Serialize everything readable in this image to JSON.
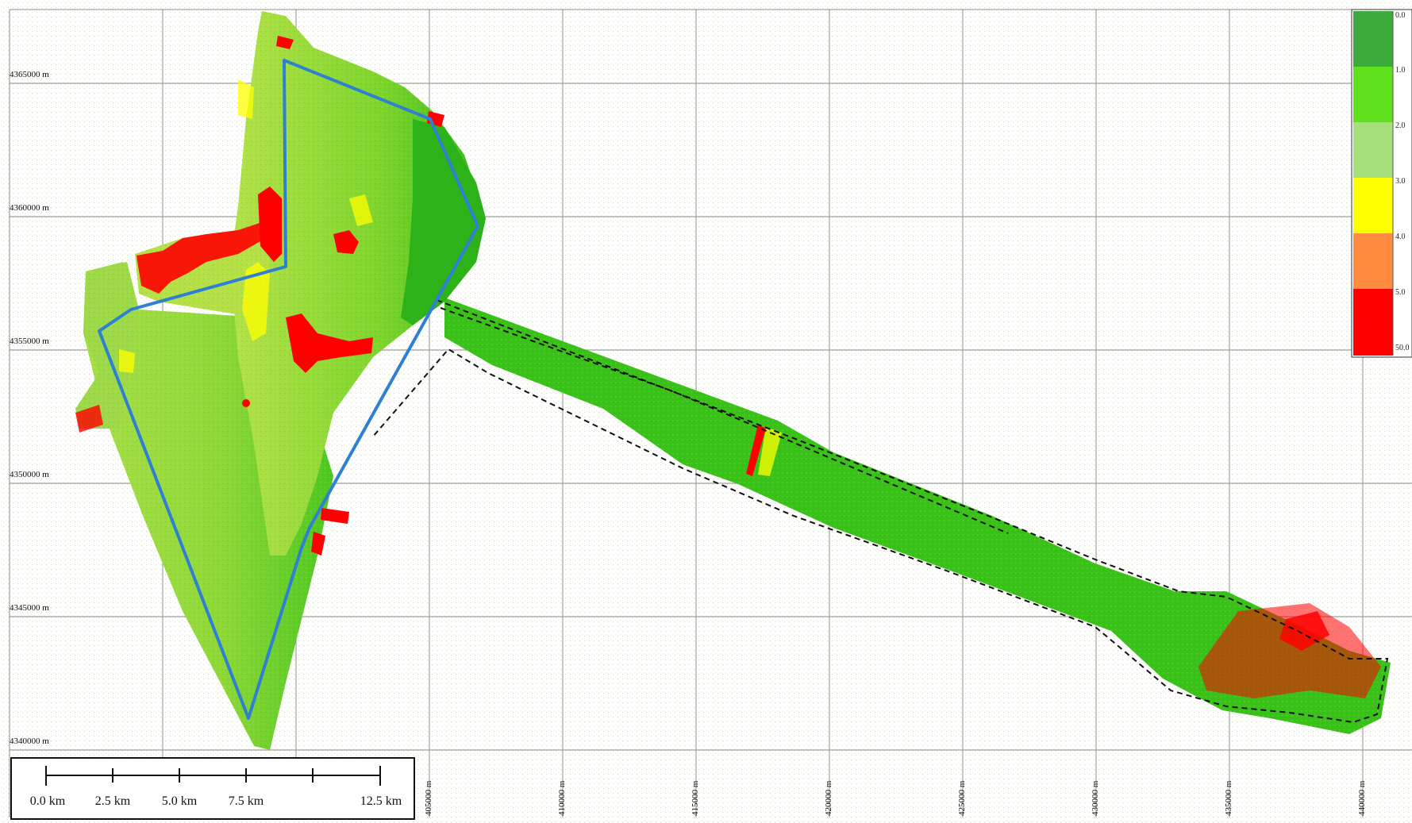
{
  "map": {
    "y_ticks": [
      "4365000 m",
      "4360000 m",
      "4355000 m",
      "4350000 m",
      "4345000 m",
      "4340000 m"
    ],
    "x_ticks": [
      "405000 m",
      "410000 m",
      "415000 m",
      "420000 m",
      "425000 m",
      "430000 m",
      "435000 m",
      "440000 m"
    ],
    "legend": {
      "labels": [
        "0.0",
        "1.0",
        "2.0",
        "3.0",
        "4.0",
        "5.0",
        "50.0"
      ],
      "colors": [
        "#3bab3b",
        "#5fe01c",
        "#a6e07a",
        "#ffff00",
        "#ff8c40",
        "#ff0000"
      ]
    },
    "scale_bar": {
      "labels": [
        "0.0 km",
        "2.5 km",
        "5.0 km",
        "7.5 km",
        "12.5 km"
      ]
    },
    "colors": {
      "grid": "#8c8c8c",
      "survey_boundary": "#2f7fd3",
      "corridor_boundary": "#111111",
      "high_value": "#ff0000",
      "base_green": "#36c418",
      "light_green": "#9ade3a"
    }
  }
}
